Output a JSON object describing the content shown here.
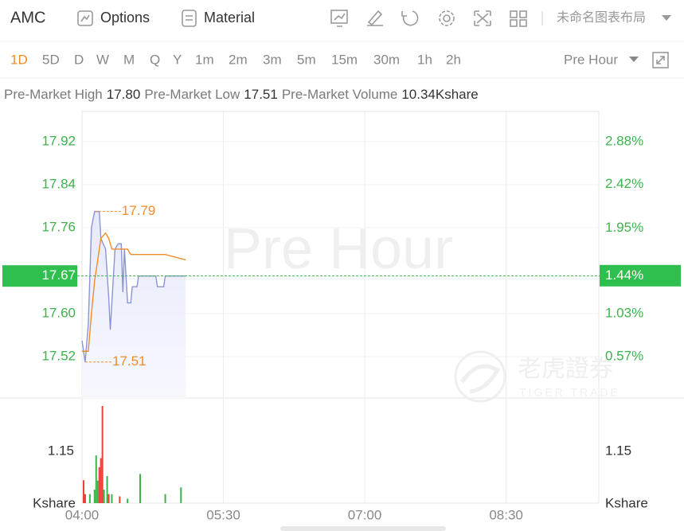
{
  "toolbar": {
    "symbol": "AMC",
    "options": "Options",
    "material": "Material",
    "layout_name": "未命名图表布局"
  },
  "periods": [
    "1D",
    "5D",
    "D",
    "W",
    "M",
    "Q",
    "Y",
    "1m",
    "2m",
    "3m",
    "5m",
    "15m",
    "30m",
    "1h",
    "2h"
  ],
  "session": "Pre Hour",
  "stats": [
    {
      "label": "Pre-Market High",
      "value": "17.80"
    },
    {
      "label": "Pre-Market Low",
      "value": "17.51"
    },
    {
      "label": "Pre-Market Volume",
      "value": "10.34Kshare"
    }
  ],
  "watermark": {
    "text": "Pre Hour",
    "brand": "老虎證券",
    "brand_en": "TIGER TRADE"
  },
  "chart_data": {
    "type": "line",
    "x": [
      240,
      242,
      244,
      246,
      248,
      251,
      252,
      255,
      257,
      258,
      259,
      261,
      263,
      265,
      266,
      267,
      269,
      271,
      272,
      275,
      276,
      287,
      288,
      292,
      293,
      306
    ],
    "series": [
      {
        "name": "Price",
        "color": "#8b93d9",
        "values": [
          17.55,
          17.51,
          17.58,
          17.76,
          17.79,
          17.79,
          17.74,
          17.72,
          17.63,
          17.57,
          17.62,
          17.72,
          17.73,
          17.73,
          17.64,
          17.72,
          17.62,
          17.62,
          17.65,
          17.65,
          17.67,
          17.67,
          17.65,
          17.65,
          17.67,
          17.67
        ]
      },
      {
        "name": "Average",
        "color": "#f08c2a",
        "values": [
          17.53,
          17.53,
          17.53,
          17.6,
          17.66,
          17.72,
          17.74,
          17.75,
          17.74,
          17.73,
          17.72,
          17.72,
          17.72,
          17.72,
          17.72,
          17.72,
          17.72,
          17.71,
          17.71,
          17.71,
          17.71,
          17.71,
          17.71,
          17.71,
          17.71,
          17.7
        ]
      }
    ],
    "xlim": [
      240,
      569
    ],
    "xticks": [
      {
        "value": 240,
        "label": "04:00"
      },
      {
        "value": 330,
        "label": "05:30"
      },
      {
        "value": 420,
        "label": "07:00"
      },
      {
        "value": 510,
        "label": "08:30"
      }
    ],
    "ylim": [
      17.443,
      17.976
    ],
    "yticks": [
      {
        "value": 17.92,
        "label": "17.92"
      },
      {
        "value": 17.84,
        "label": "17.84"
      },
      {
        "value": 17.76,
        "label": "17.76"
      },
      {
        "value": 17.6,
        "label": "17.60"
      },
      {
        "value": 17.52,
        "label": "17.52"
      }
    ],
    "y2lim": [
      0.125,
      3.205
    ],
    "y2ticks": [
      {
        "value": 2.88,
        "label": "2.88%"
      },
      {
        "value": 2.42,
        "label": "2.42%"
      },
      {
        "value": 1.95,
        "label": "1.95%"
      },
      {
        "value": 1.03,
        "label": "1.03%"
      },
      {
        "value": 0.57,
        "label": "0.57%"
      }
    ],
    "annotations": [
      17.79,
      17.51
    ],
    "last": 17.67,
    "last_change": {
      "value": 1.44,
      "label": "1.44%"
    },
    "grid": true,
    "volume": {
      "unit": "Kshare",
      "ylim": [
        0,
        2.335
      ],
      "yticks": [
        1.15
      ],
      "series": [
        {
          "color": "#3cb44b",
          "x": [
            245,
            248,
            249,
            250,
            254,
            256,
            259,
            269,
            277,
            293,
            303
          ],
          "values": [
            0.2,
            0.3,
            1.06,
            0.5,
            0.3,
            0.6,
            0.2,
            0.1,
            0.65,
            0.2,
            0.35
          ]
        },
        {
          "color": "#e8403a",
          "x": [
            241,
            242,
            251,
            252,
            253,
            257,
            264
          ],
          "values": [
            0.51,
            0.2,
            0.8,
            1.0,
            2.16,
            0.2,
            0.15
          ]
        }
      ]
    }
  }
}
